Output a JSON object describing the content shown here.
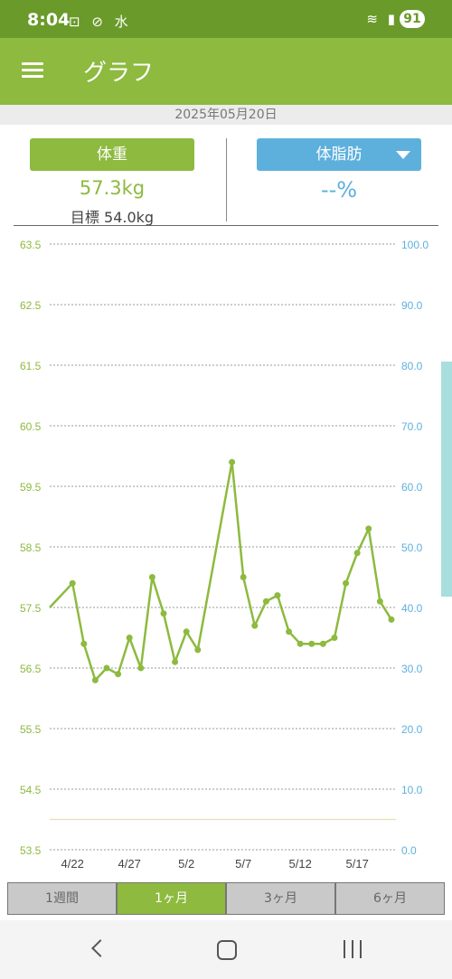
{
  "status_bar": {
    "time": "8:04",
    "left_icons": "⊡ ⊘ 水",
    "right_icons": "≋ ▮",
    "battery": "91"
  },
  "app_bar": {
    "title": "グラフ",
    "menu_icon": "hamburger-menu-icon"
  },
  "date": "2025年05月20日",
  "metrics": {
    "weight_label": "体重",
    "weight_value": "57.3kg",
    "target_text": "目標 54.0kg",
    "fat_label": "体脂肪",
    "fat_value": "--%"
  },
  "colors": {
    "accent_green": "#8dba3f",
    "status_green": "#6a9a2a",
    "fat_blue": "#5eb0dc",
    "target_line": "#e5e0b0"
  },
  "chart_data": {
    "type": "line",
    "x_tick_labels": [
      "4/22",
      "4/27",
      "5/2",
      "5/7",
      "5/12",
      "5/17"
    ],
    "x_tick_dates": [
      22,
      27,
      32,
      37,
      42,
      47
    ],
    "left_axis": {
      "ticks": [
        "63.5",
        "62.5",
        "61.5",
        "60.5",
        "59.5",
        "58.5",
        "57.5",
        "56.5",
        "55.5",
        "54.5",
        "53.5"
      ],
      "range": [
        53.5,
        63.5
      ]
    },
    "right_axis": {
      "ticks": [
        "100.0",
        "90.0",
        "80.0",
        "70.0",
        "60.0",
        "50.0",
        "40.0",
        "30.0",
        "20.0",
        "10.0",
        "0.0"
      ],
      "range": [
        0,
        100
      ]
    },
    "target_value": 54.0,
    "grid": true,
    "series": [
      {
        "x": [
          20,
          22,
          23,
          24,
          25,
          26,
          27,
          28,
          29,
          30,
          31,
          32,
          33,
          36,
          37,
          38,
          39,
          40,
          41,
          42,
          43,
          44,
          45,
          46,
          47,
          48,
          49,
          50
        ],
        "values": [
          57.5,
          57.9,
          56.9,
          56.3,
          56.5,
          56.4,
          57.0,
          56.5,
          58.0,
          57.4,
          56.6,
          57.1,
          56.8,
          59.9,
          58.0,
          57.2,
          57.6,
          57.7,
          57.1,
          56.9,
          56.9,
          56.9,
          57.0,
          57.9,
          58.4,
          58.8,
          57.6,
          57.3
        ],
        "markers": [
          false,
          true,
          true,
          true,
          true,
          true,
          true,
          true,
          true,
          true,
          true,
          true,
          true,
          true,
          true,
          true,
          true,
          true,
          true,
          true,
          true,
          true,
          true,
          true,
          true,
          true,
          true,
          true
        ]
      }
    ]
  },
  "tabs": [
    {
      "label": "1週間",
      "active": false
    },
    {
      "label": "1ヶ月",
      "active": true
    },
    {
      "label": "3ヶ月",
      "active": false
    },
    {
      "label": "6ヶ月",
      "active": false
    }
  ],
  "nav_bar": {
    "back_icon": "back-icon",
    "home_icon": "home-icon",
    "recent_icon": "recent-apps-icon"
  }
}
